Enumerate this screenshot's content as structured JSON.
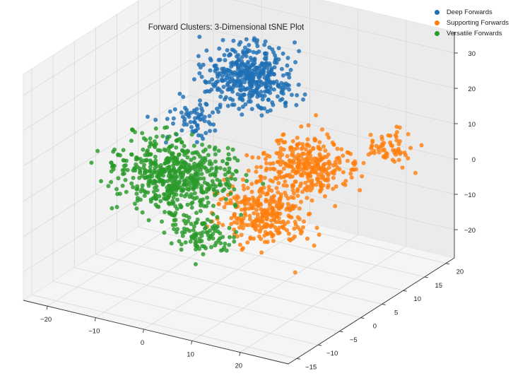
{
  "chart_data": {
    "type": "scatter",
    "title": "Forward Clusters: 3-Dimensional tSNE Plot",
    "xlabel": "",
    "ylabel": "",
    "zlabel": "",
    "xlim": [
      -25,
      30
    ],
    "ylim": [
      -17,
      22
    ],
    "zlim": [
      -28,
      36
    ],
    "x_ticks": [
      -20,
      -10,
      0,
      10,
      20
    ],
    "y_ticks": [
      -15,
      -10,
      -5,
      0,
      5,
      10,
      15,
      20
    ],
    "z_ticks": [
      -20,
      -10,
      0,
      10,
      20,
      30
    ],
    "grid": true,
    "legend_position": "top-right",
    "series": [
      {
        "name": "Deep Forwards",
        "color": "#1f6fb4",
        "clusters": [
          {
            "center": [
              -4,
              12,
              20
            ],
            "spread": [
              6,
              4,
              5
            ],
            "count": 420
          },
          {
            "center": [
              -12,
              8,
              8
            ],
            "spread": [
              5,
              3,
              3
            ],
            "count": 70
          }
        ]
      },
      {
        "name": "Supporting Forwards",
        "color": "#ff7f0e",
        "clusters": [
          {
            "center": [
              12,
              -2,
              -3
            ],
            "spread": [
              6,
              3,
              6
            ],
            "count": 300
          },
          {
            "center": [
              12,
              8,
              3
            ],
            "spread": [
              6,
              4,
              5
            ],
            "count": 320
          },
          {
            "center": [
              22,
              16,
              5
            ],
            "spread": [
              3,
              2,
              3
            ],
            "count": 60
          }
        ]
      },
      {
        "name": "Versatile Forwards",
        "color": "#2a9a2a",
        "clusters": [
          {
            "center": [
              -8,
              0,
              0
            ],
            "spread": [
              8,
              5,
              6
            ],
            "count": 560
          },
          {
            "center": [
              4,
              -8,
              -6
            ],
            "spread": [
              4,
              3,
              4
            ],
            "count": 110
          }
        ]
      }
    ]
  }
}
